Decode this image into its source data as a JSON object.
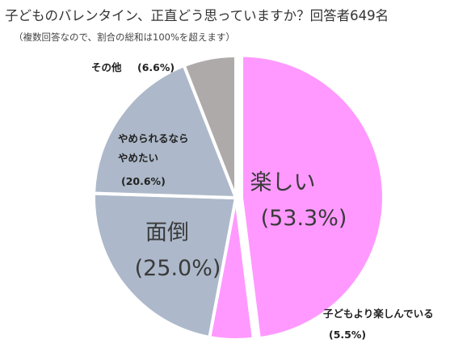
{
  "title": "子どものバレンタイン、正直どう思っていますか？回答者649名",
  "subtitle": "（複数回答なので、割合の総和は100%を超えます）",
  "colors": {
    "tanoshii": "#ff99ff",
    "kodomo": "#ff99ff",
    "mendou": "#adb9ca",
    "yameru": "#adb9ca",
    "sonota": "#aeaaaa"
  },
  "chart_data": {
    "type": "pie",
    "title": "子どものバレンタイン、正直どう思っていますか？回答者649名",
    "slices": [
      {
        "key": "tanoshii",
        "label": "楽しい",
        "pct_text": "(53.3%)",
        "value": 53.3
      },
      {
        "key": "kodomo",
        "label": "子どもより楽しんでいる",
        "pct_text": "(5.5%)",
        "value": 5.5
      },
      {
        "key": "mendou",
        "label": "面倒",
        "pct_text": "(25.0%)",
        "value": 25.0
      },
      {
        "key": "yameru",
        "label": "やめられるなら\nやめたい",
        "label_line1": "やめられるなら",
        "label_line2": "やめたい",
        "pct_text": "(20.6%)",
        "value": 20.6
      },
      {
        "key": "sonota",
        "label": "その他",
        "pct_text": "(6.6%)",
        "value": 6.6
      }
    ]
  }
}
